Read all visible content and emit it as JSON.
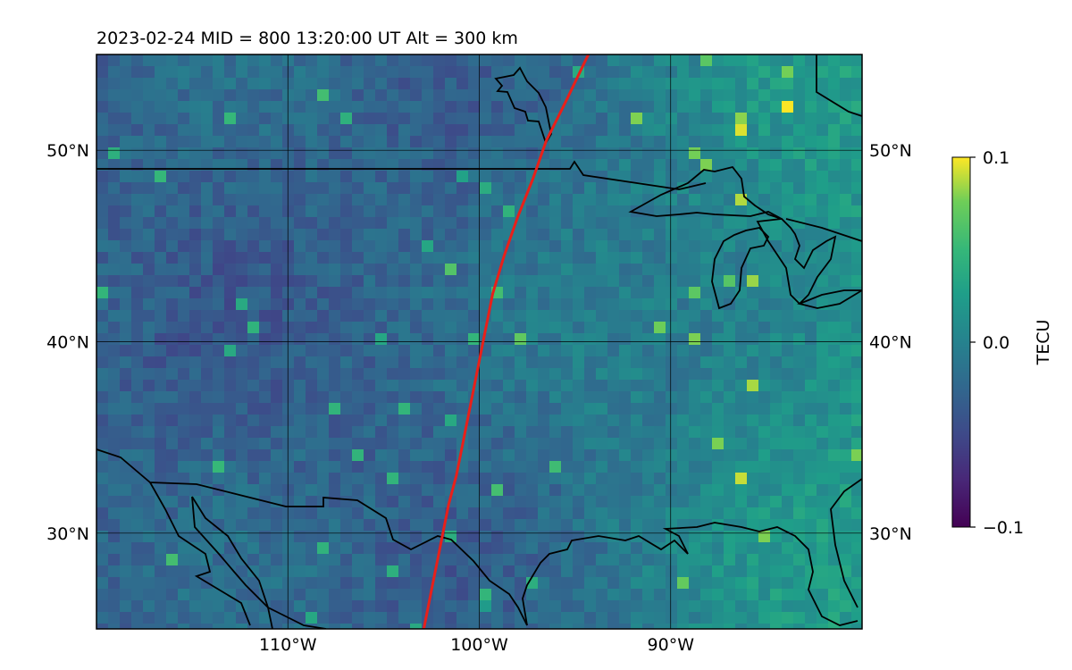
{
  "title": "2023-02-24  MID = 800    13:20:00  UT  Alt = 300 km",
  "map": {
    "lon_range": [
      -120,
      -80
    ],
    "lat_range": [
      25,
      55
    ],
    "lat_ticks": [
      {
        "value": 30,
        "label": "30°N"
      },
      {
        "value": 40,
        "label": "40°N"
      },
      {
        "value": 50,
        "label": "50°N"
      }
    ],
    "lon_ticks": [
      {
        "value": -110,
        "label": "110°W"
      },
      {
        "value": -100,
        "label": "100°W"
      },
      {
        "value": -90,
        "label": "90°W"
      }
    ],
    "track_color": "#e8201a",
    "coastline_color": "#000000",
    "track": [
      [
        -102.9,
        25.0
      ],
      [
        -102.5,
        27.0
      ],
      [
        -102.1,
        29.0
      ],
      [
        -101.6,
        31.5
      ],
      [
        -101.2,
        33.0
      ],
      [
        -100.8,
        35.0
      ],
      [
        -100.3,
        37.5
      ],
      [
        -99.8,
        40.0
      ],
      [
        -99.3,
        42.5
      ],
      [
        -98.7,
        44.5
      ],
      [
        -98.0,
        46.5
      ],
      [
        -97.2,
        48.5
      ],
      [
        -96.5,
        50.5
      ],
      [
        -95.5,
        52.5
      ],
      [
        -94.3,
        55.0
      ]
    ]
  },
  "colorbar": {
    "label": "TECU",
    "min": -0.1,
    "max": 0.1,
    "ticks": [
      {
        "value": 0.1,
        "label": "0.1"
      },
      {
        "value": 0.0,
        "label": "0.0"
      },
      {
        "value": -0.1,
        "label": "−0.1"
      }
    ],
    "colormap": "viridis"
  }
}
